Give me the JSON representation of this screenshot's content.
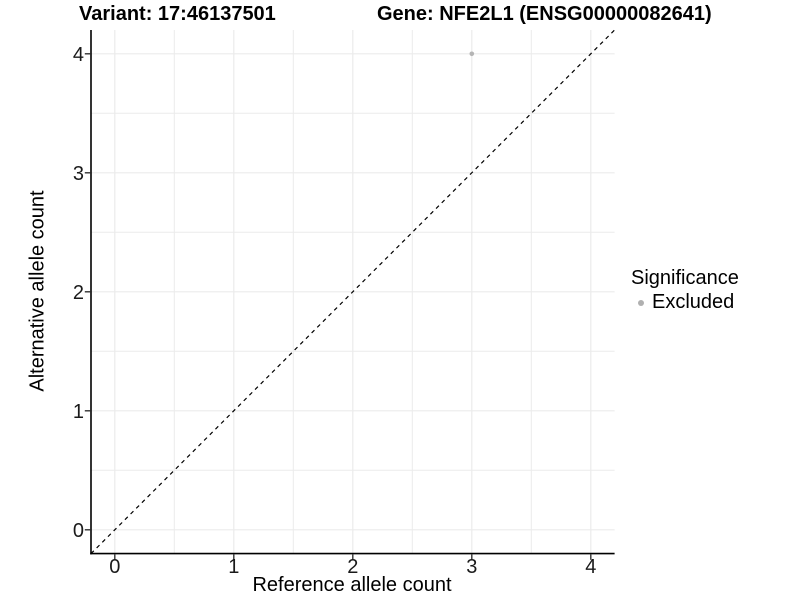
{
  "header": {
    "variant_title": "Variant: 17:46137501",
    "gene_title": "Gene: NFE2L1 (ENSG00000082641)"
  },
  "chart_data": {
    "type": "scatter",
    "title": "Variant: 17:46137501  Gene: NFE2L1 (ENSG00000082641)",
    "xlabel": "Reference allele count",
    "ylabel": "Alternative allele count",
    "xlim": [
      -0.2,
      4.2
    ],
    "ylim": [
      -0.2,
      4.2
    ],
    "x_ticks": [
      0,
      1,
      2,
      3,
      4
    ],
    "y_ticks": [
      0,
      1,
      2,
      3,
      4
    ],
    "x_tick_labels": [
      "0",
      "1",
      "2",
      "3",
      "4"
    ],
    "y_tick_labels": [
      "0",
      "1",
      "2",
      "3",
      "4"
    ],
    "x_minor": [
      0.5,
      1.5,
      2.5,
      3.5
    ],
    "y_minor": [
      0.5,
      1.5,
      2.5,
      3.5
    ],
    "grid": "on",
    "points": [
      {
        "x": 3,
        "y": 4,
        "significance": "Excluded"
      }
    ],
    "reference_line": {
      "kind": "identity y=x",
      "style": "dashed",
      "x1": -0.2,
      "y1": -0.2,
      "x2": 4.2,
      "y2": 4.2
    },
    "legend": {
      "title": "Significance",
      "position": "right",
      "items": [
        {
          "label": "Excluded",
          "color": "#b3b3b3"
        }
      ]
    }
  },
  "colors": {
    "background": "#ffffff",
    "grid": "#ebebeb",
    "axis_line": "#000000",
    "tick": "#333333",
    "tick_label": "#1a1a1a",
    "title_text": "#000000",
    "point": "#b5b5b5",
    "legend_dot": "#b0b0b0",
    "identity_line": "#000000"
  }
}
